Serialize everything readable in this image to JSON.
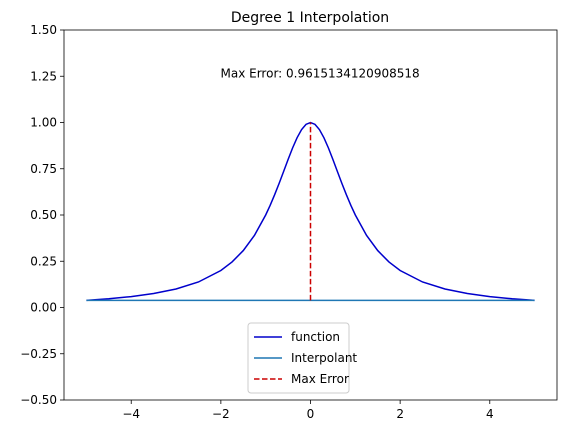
{
  "chart_data": {
    "type": "line",
    "title": "Degree 1 Interpolation",
    "xlabel": "",
    "ylabel": "",
    "xlim": [
      -5.5,
      5.5
    ],
    "ylim": [
      -0.5,
      1.5
    ],
    "xticks": [
      -4,
      -2,
      0,
      2,
      4
    ],
    "yticks": [
      -0.5,
      -0.25,
      0.0,
      0.25,
      0.5,
      0.75,
      1.0,
      1.25,
      1.5
    ],
    "xtick_labels": [
      "−4",
      "−2",
      "0",
      "2",
      "4"
    ],
    "ytick_labels": [
      "−0.50",
      "−0.25",
      "0.00",
      "0.25",
      "0.50",
      "0.75",
      "1.00",
      "1.25",
      "1.50"
    ],
    "grid": false,
    "legend_position": "bottom-center",
    "series": [
      {
        "name": "function",
        "color": "#0000cc",
        "style": "solid",
        "x": [
          -5,
          -4.5,
          -4,
          -3.5,
          -3,
          -2.5,
          -2,
          -1.75,
          -1.5,
          -1.25,
          -1,
          -0.9,
          -0.8,
          -0.7,
          -0.6,
          -0.5,
          -0.4,
          -0.3,
          -0.2,
          -0.1,
          0,
          0.1,
          0.2,
          0.3,
          0.4,
          0.5,
          0.6,
          0.7,
          0.8,
          0.9,
          1,
          1.25,
          1.5,
          1.75,
          2,
          2.5,
          3,
          3.5,
          4,
          4.5,
          5
        ],
        "y": [
          0.0385,
          0.0471,
          0.0588,
          0.0755,
          0.1,
          0.1379,
          0.2,
          0.2462,
          0.3077,
          0.3902,
          0.5,
          0.5525,
          0.6098,
          0.6711,
          0.7353,
          0.8,
          0.8621,
          0.9174,
          0.9615,
          0.9901,
          1.0,
          0.9901,
          0.9615,
          0.9174,
          0.8621,
          0.8,
          0.7353,
          0.6711,
          0.6098,
          0.5525,
          0.5,
          0.3902,
          0.3077,
          0.2462,
          0.2,
          0.1379,
          0.1,
          0.0755,
          0.0588,
          0.0471,
          0.0385
        ]
      },
      {
        "name": "Interpolant",
        "color": "#1f77b4",
        "style": "solid",
        "x": [
          -5,
          5
        ],
        "y": [
          0.0385,
          0.0385
        ]
      },
      {
        "name": "Max Error",
        "color": "#cc0000",
        "style": "dashed",
        "x": [
          0,
          0
        ],
        "y": [
          0.0385,
          1.0
        ]
      }
    ],
    "annotations": [
      {
        "text": "Max Error: 0.9615134120908518",
        "x": 0,
        "y": 1.25
      }
    ]
  }
}
